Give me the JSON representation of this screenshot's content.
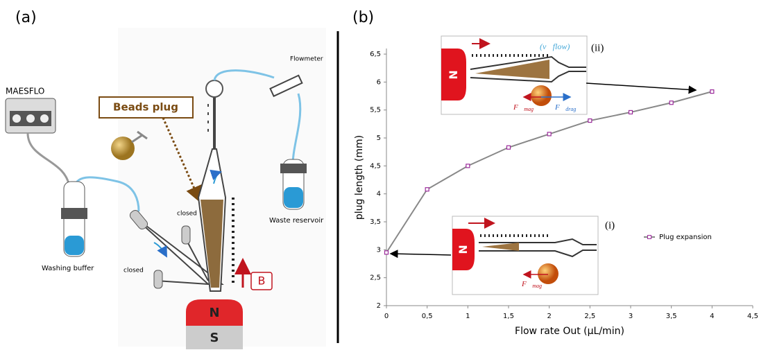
{
  "panel_a": {
    "label": "(a)",
    "texts": {
      "maesflo": "MAESFLO",
      "beads_plug": "Beads plug",
      "flowmeter": "Flowmeter",
      "waste": "Waste reservoir",
      "washing": "Washing buffer",
      "closed_1": "closed",
      "closed_2": "closed",
      "north": "N",
      "south": "S",
      "field": "B"
    }
  },
  "chart_data": {
    "type": "line",
    "label": "(b)",
    "x_label": "Flow rate Out (µL/min)",
    "y_label": "plug length (mm)",
    "x": [
      0,
      0.5,
      1,
      1.5,
      2,
      2.5,
      3,
      3.5,
      4
    ],
    "series": [
      {
        "name": "Plug expansion",
        "color": "#9b2a9b",
        "values": [
          2.95,
          4.08,
          4.5,
          4.83,
          5.07,
          5.31,
          5.46,
          5.63,
          5.83
        ]
      }
    ],
    "xlim": [
      0,
      4.5
    ],
    "ylim": [
      2,
      6.6
    ],
    "xticks": [
      0,
      {
        "value": 0.5,
        "label": "0,5"
      },
      1,
      {
        "value": 1.5,
        "label": "1,5"
      },
      2,
      {
        "value": 2.5,
        "label": "2,5"
      },
      3,
      {
        "value": 3.5,
        "label": "3,5"
      },
      4,
      {
        "value": 4.5,
        "label": "4,5"
      }
    ],
    "yticks": [
      2,
      {
        "value": 2.5,
        "label": "2,5"
      },
      3,
      {
        "value": 3.5,
        "label": "3,5"
      },
      4,
      {
        "value": 4.5,
        "label": "4,5"
      },
      5,
      {
        "value": 5.5,
        "label": "5,5"
      },
      6,
      {
        "value": 6.5,
        "label": "6,5"
      }
    ],
    "grid": false,
    "legend": "right",
    "insets": [
      {
        "label": "(ii)",
        "flow": "(v⃗flow)",
        "f_sym": "F⃗",
        "f_mag": "mag",
        "d_sym": "F⃗",
        "d_drag": "drag",
        "magnet": "N"
      },
      {
        "label": "(i)",
        "f_sym": "F⃗",
        "f_mag": "mag",
        "magnet": "N"
      }
    ]
  }
}
